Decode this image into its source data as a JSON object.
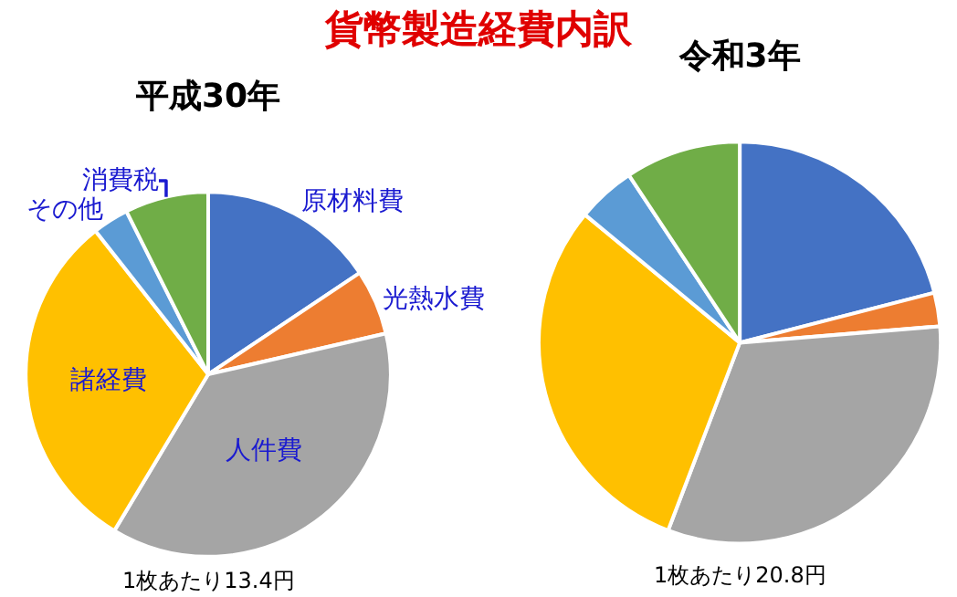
{
  "chart_data": [
    {
      "type": "pie",
      "title": "貨幣製造経費内訳",
      "subtitle": "平成30年",
      "categories": [
        "原材料費",
        "光熱水費",
        "人件費",
        "諸経費",
        "その他",
        "消費税"
      ],
      "values": [
        15.6,
        5.8,
        37.2,
        30.8,
        3.2,
        7.4
      ],
      "colors": [
        "#4472c4",
        "#ed7d31",
        "#a5a5a5",
        "#ffc000",
        "#5b9bd5",
        "#70ad47"
      ],
      "annotations": [
        "1枚あたり13.4円"
      ]
    },
    {
      "type": "pie",
      "title": "令和3年",
      "categories": [
        null,
        null,
        null,
        null,
        null,
        null
      ],
      "values": [
        21.0,
        2.7,
        32.1,
        30.2,
        4.7,
        9.3
      ],
      "colors": [
        "#4472c4",
        "#ed7d31",
        "#a5a5a5",
        "#ffc000",
        "#5b9bd5",
        "#70ad47"
      ],
      "annotations": [
        "1枚あたり20.8円"
      ]
    }
  ]
}
